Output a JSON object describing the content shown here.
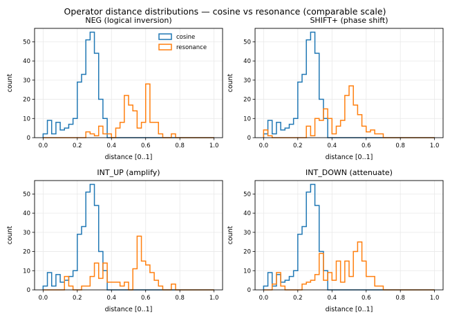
{
  "chart_data": {
    "type": "step-histogram",
    "title": "Operator distance distributions — cosine vs resonance (comparable scale)",
    "panels": [
      {
        "title": "NEG (logical inversion)",
        "xlabel": "distance [0..1]",
        "ylabel": "count",
        "xlim": [
          -0.05,
          1.05
        ],
        "ylim": [
          0,
          57
        ],
        "xticks": [
          0.0,
          0.2,
          0.4,
          0.6,
          0.8,
          1.0
        ],
        "xtick_labels": [
          "0.0",
          "0.2",
          "0.4",
          "0.6",
          "0.8",
          "1.0"
        ],
        "yticks": [
          0,
          10,
          20,
          30,
          40,
          50
        ],
        "ytick_labels": [
          "0",
          "10",
          "20",
          "30",
          "40",
          "50"
        ],
        "bin_edges": [
          0.0,
          0.025,
          0.05,
          0.075,
          0.1,
          0.125,
          0.15,
          0.175,
          0.2,
          0.225,
          0.25,
          0.275,
          0.3,
          0.325,
          0.35,
          0.375,
          0.4,
          0.425,
          0.45,
          0.475,
          0.5,
          0.525,
          0.55,
          0.575,
          0.6,
          0.625,
          0.65,
          0.675,
          0.7,
          0.725,
          0.75,
          0.775,
          0.8,
          0.825,
          0.85,
          0.875,
          0.9,
          0.925,
          0.95,
          0.975,
          1.0
        ],
        "legend": {
          "position": "upper right",
          "entries": [
            "cosine",
            "resonance"
          ]
        },
        "series": [
          {
            "name": "cosine",
            "color": "#1f77b4",
            "counts": [
              2,
              9,
              2,
              8,
              4,
              5,
              7,
              10,
              29,
              33,
              51,
              55,
              44,
              20,
              10,
              0,
              0,
              0,
              0,
              0,
              0,
              0,
              0,
              0,
              0,
              0,
              0,
              0,
              0,
              0,
              0,
              0,
              0,
              0,
              0,
              0,
              0,
              0,
              0,
              0
            ]
          },
          {
            "name": "resonance",
            "color": "#ff7f0e",
            "counts": [
              0,
              0,
              0,
              0,
              0,
              0,
              0,
              0,
              0,
              0,
              3,
              2,
              1,
              6,
              2,
              2,
              0,
              5,
              8,
              22,
              17,
              14,
              5,
              8,
              28,
              8,
              8,
              2,
              0,
              0,
              2,
              0,
              0,
              0,
              0,
              0,
              0,
              0,
              0,
              0
            ]
          }
        ]
      },
      {
        "title": "SHIFT+ (phase shift)",
        "xlabel": "distance [0..1]",
        "ylabel": "count",
        "xlim": [
          -0.05,
          1.05
        ],
        "ylim": [
          0,
          57
        ],
        "xticks": [
          0.0,
          0.2,
          0.4,
          0.6,
          0.8,
          1.0
        ],
        "xtick_labels": [
          "0.0",
          "0.2",
          "0.4",
          "0.6",
          "0.8",
          "1.0"
        ],
        "yticks": [
          0,
          10,
          20,
          30,
          40,
          50
        ],
        "ytick_labels": [
          "0",
          "10",
          "20",
          "30",
          "40",
          "50"
        ],
        "bin_edges": [
          0.0,
          0.025,
          0.05,
          0.075,
          0.1,
          0.125,
          0.15,
          0.175,
          0.2,
          0.225,
          0.25,
          0.275,
          0.3,
          0.325,
          0.35,
          0.375,
          0.4,
          0.425,
          0.45,
          0.475,
          0.5,
          0.525,
          0.55,
          0.575,
          0.6,
          0.625,
          0.65,
          0.675,
          0.7,
          0.725,
          0.75,
          0.775,
          0.8,
          0.825,
          0.85,
          0.875,
          0.9,
          0.925,
          0.95,
          0.975,
          1.0
        ],
        "legend": null,
        "series": [
          {
            "name": "cosine",
            "color": "#1f77b4",
            "counts": [
              2,
              9,
              2,
              8,
              4,
              5,
              7,
              10,
              29,
              33,
              51,
              55,
              44,
              20,
              10,
              0,
              0,
              0,
              0,
              0,
              0,
              0,
              0,
              0,
              0,
              0,
              0,
              0,
              0,
              0,
              0,
              0,
              0,
              0,
              0,
              0,
              0,
              0,
              0,
              0
            ]
          },
          {
            "name": "resonance",
            "color": "#ff7f0e",
            "counts": [
              4,
              1,
              0,
              0,
              0,
              0,
              0,
              0,
              0,
              0,
              6,
              1,
              10,
              9,
              15,
              10,
              2,
              6,
              9,
              22,
              27,
              17,
              12,
              6,
              3,
              4,
              2,
              2,
              0,
              0,
              0,
              0,
              0,
              0,
              0,
              0,
              0,
              0,
              0,
              0
            ]
          }
        ]
      },
      {
        "title": "INT_UP (amplify)",
        "xlabel": "distance [0..1]",
        "ylabel": "count",
        "xlim": [
          -0.05,
          1.05
        ],
        "ylim": [
          0,
          57
        ],
        "xticks": [
          0.0,
          0.2,
          0.4,
          0.6,
          0.8,
          1.0
        ],
        "xtick_labels": [
          "0.0",
          "0.2",
          "0.4",
          "0.6",
          "0.8",
          "1.0"
        ],
        "yticks": [
          0,
          10,
          20,
          30,
          40,
          50
        ],
        "ytick_labels": [
          "0",
          "10",
          "20",
          "30",
          "40",
          "50"
        ],
        "bin_edges": [
          0.0,
          0.025,
          0.05,
          0.075,
          0.1,
          0.125,
          0.15,
          0.175,
          0.2,
          0.225,
          0.25,
          0.275,
          0.3,
          0.325,
          0.35,
          0.375,
          0.4,
          0.425,
          0.45,
          0.475,
          0.5,
          0.525,
          0.55,
          0.575,
          0.6,
          0.625,
          0.65,
          0.675,
          0.7,
          0.725,
          0.75,
          0.775,
          0.8,
          0.825,
          0.85,
          0.875,
          0.9,
          0.925,
          0.95,
          0.975,
          1.0
        ],
        "legend": null,
        "series": [
          {
            "name": "cosine",
            "color": "#1f77b4",
            "counts": [
              2,
              9,
              2,
              8,
              4,
              5,
              7,
              10,
              29,
              33,
              51,
              55,
              44,
              20,
              10,
              0,
              0,
              0,
              0,
              0,
              0,
              0,
              0,
              0,
              0,
              0,
              0,
              0,
              0,
              0,
              0,
              0,
              0,
              0,
              0,
              0,
              0,
              0,
              0,
              0
            ]
          },
          {
            "name": "resonance",
            "color": "#ff7f0e",
            "counts": [
              0,
              0,
              0,
              0,
              0,
              7,
              2,
              0,
              0,
              2,
              2,
              7,
              14,
              6,
              14,
              4,
              4,
              4,
              2,
              4,
              0,
              11,
              28,
              15,
              13,
              9,
              5,
              2,
              0,
              0,
              3,
              0,
              0,
              0,
              0,
              0,
              0,
              0,
              0,
              0
            ]
          }
        ]
      },
      {
        "title": "INT_DOWN (attenuate)",
        "xlabel": "distance [0..1]",
        "ylabel": "count",
        "xlim": [
          -0.05,
          1.05
        ],
        "ylim": [
          0,
          57
        ],
        "xticks": [
          0.0,
          0.2,
          0.4,
          0.6,
          0.8,
          1.0
        ],
        "xtick_labels": [
          "0.0",
          "0.2",
          "0.4",
          "0.6",
          "0.8",
          "1.0"
        ],
        "yticks": [
          0,
          10,
          20,
          30,
          40,
          50
        ],
        "ytick_labels": [
          "0",
          "10",
          "20",
          "30",
          "40",
          "50"
        ],
        "bin_edges": [
          0.0,
          0.025,
          0.05,
          0.075,
          0.1,
          0.125,
          0.15,
          0.175,
          0.2,
          0.225,
          0.25,
          0.275,
          0.3,
          0.325,
          0.35,
          0.375,
          0.4,
          0.425,
          0.45,
          0.475,
          0.5,
          0.525,
          0.55,
          0.575,
          0.6,
          0.625,
          0.65,
          0.675,
          0.7,
          0.725,
          0.75,
          0.775,
          0.8,
          0.825,
          0.85,
          0.875,
          0.9,
          0.925,
          0.95,
          0.975,
          1.0
        ],
        "legend": null,
        "series": [
          {
            "name": "cosine",
            "color": "#1f77b4",
            "counts": [
              2,
              9,
              2,
              8,
              4,
              5,
              7,
              10,
              29,
              33,
              51,
              55,
              44,
              20,
              10,
              0,
              0,
              0,
              0,
              0,
              0,
              0,
              0,
              0,
              0,
              0,
              0,
              0,
              0,
              0,
              0,
              0,
              0,
              0,
              0,
              0,
              0,
              0,
              0,
              0
            ]
          },
          {
            "name": "resonance",
            "color": "#ff7f0e",
            "counts": [
              0,
              0,
              3,
              9,
              2,
              0,
              0,
              0,
              0,
              3,
              4,
              5,
              8,
              19,
              5,
              9,
              5,
              15,
              4,
              15,
              7,
              20,
              25,
              15,
              7,
              7,
              2,
              2,
              0,
              0,
              0,
              0,
              0,
              0,
              0,
              0,
              0,
              0,
              0,
              0
            ]
          }
        ]
      }
    ]
  }
}
